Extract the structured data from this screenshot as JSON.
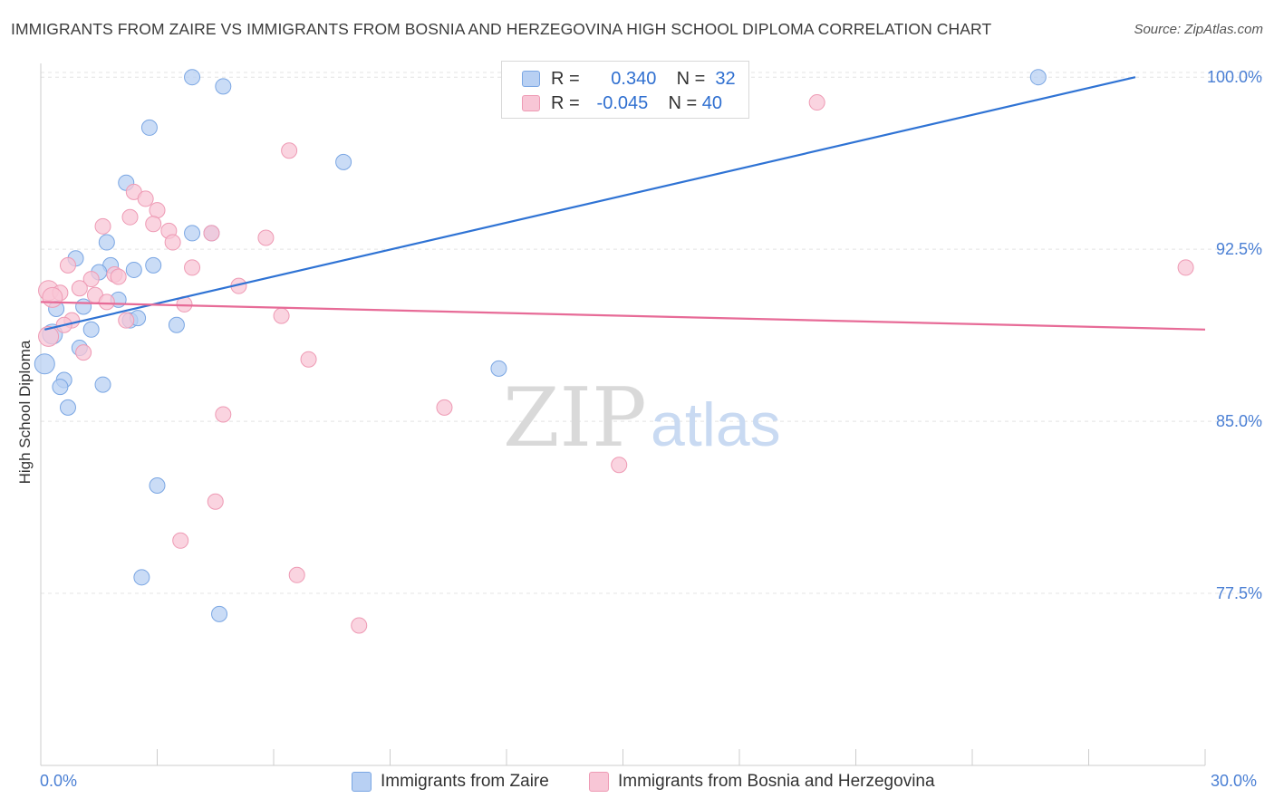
{
  "title": "IMMIGRANTS FROM ZAIRE VS IMMIGRANTS FROM BOSNIA AND HERZEGOVINA HIGH SCHOOL DIPLOMA CORRELATION CHART",
  "source": "Source: ZipAtlas.com",
  "watermark": {
    "zip": "ZIP",
    "atlas": "atlas"
  },
  "legend": {
    "r_label": "R =",
    "n_label": "N =",
    "series1": {
      "r": "0.340",
      "n": "32"
    },
    "series2": {
      "r": "-0.045",
      "n": "40"
    }
  },
  "x_axis": {
    "min_label": "0.0%",
    "max_label": "30.0%"
  },
  "colors": {
    "blue_fill": "#b8d0f3",
    "blue_stroke": "#7aa6e3",
    "blue_line": "#2f73d4",
    "pink_fill": "#f8c6d6",
    "pink_stroke": "#ee9ab4",
    "pink_line": "#e76b97",
    "axis_text": "#4a7fd4"
  },
  "chart_data": {
    "type": "scatter",
    "title": "IMMIGRANTS FROM ZAIRE VS IMMIGRANTS FROM BOSNIA AND HERZEGOVINA HIGH SCHOOL DIPLOMA CORRELATION CHART",
    "xlabel": "",
    "ylabel": "High School Diploma",
    "xlim": [
      0,
      30
    ],
    "ylim": [
      70.0,
      100.6
    ],
    "y_ticks": [
      {
        "value": 77.5,
        "label": "77.5%"
      },
      {
        "value": 85.0,
        "label": "85.0%"
      },
      {
        "value": 92.5,
        "label": "92.5%"
      },
      {
        "value": 100.0,
        "label": "100.0%"
      }
    ],
    "grid": true,
    "series": [
      {
        "name": "Immigrants from Zaire",
        "color": "blue",
        "trend": {
          "x": [
            0.1,
            28.2
          ],
          "y": [
            89.0,
            100.0
          ]
        },
        "points": [
          {
            "x": 3.9,
            "y": 100.0
          },
          {
            "x": 4.7,
            "y": 99.6
          },
          {
            "x": 2.8,
            "y": 97.8
          },
          {
            "x": 7.8,
            "y": 96.3
          },
          {
            "x": 2.2,
            "y": 95.4
          },
          {
            "x": 4.4,
            "y": 93.2
          },
          {
            "x": 1.7,
            "y": 92.8
          },
          {
            "x": 0.9,
            "y": 92.1
          },
          {
            "x": 1.8,
            "y": 91.8
          },
          {
            "x": 1.5,
            "y": 91.5
          },
          {
            "x": 2.4,
            "y": 91.6
          },
          {
            "x": 2.9,
            "y": 91.8
          },
          {
            "x": 0.4,
            "y": 89.9
          },
          {
            "x": 1.1,
            "y": 90.0
          },
          {
            "x": 2.0,
            "y": 90.3
          },
          {
            "x": 2.3,
            "y": 89.4
          },
          {
            "x": 2.5,
            "y": 89.5
          },
          {
            "x": 3.5,
            "y": 89.2
          },
          {
            "x": 0.3,
            "y": 88.8
          },
          {
            "x": 1.3,
            "y": 89.0
          },
          {
            "x": 1.0,
            "y": 88.2
          },
          {
            "x": 0.1,
            "y": 87.5
          },
          {
            "x": 0.6,
            "y": 86.8
          },
          {
            "x": 0.5,
            "y": 86.5
          },
          {
            "x": 1.6,
            "y": 86.6
          },
          {
            "x": 0.7,
            "y": 85.6
          },
          {
            "x": 11.8,
            "y": 87.3
          },
          {
            "x": 3.0,
            "y": 82.2
          },
          {
            "x": 2.6,
            "y": 78.2
          },
          {
            "x": 4.6,
            "y": 76.6
          },
          {
            "x": 25.7,
            "y": 100.0
          },
          {
            "x": 3.9,
            "y": 93.2
          }
        ]
      },
      {
        "name": "Immigrants from Bosnia and Herzegovina",
        "color": "pink",
        "trend": {
          "x": [
            0.0,
            30.0
          ],
          "y": [
            90.2,
            89.0
          ]
        },
        "points": [
          {
            "x": 20.0,
            "y": 98.9
          },
          {
            "x": 6.4,
            "y": 96.8
          },
          {
            "x": 2.4,
            "y": 95.0
          },
          {
            "x": 2.7,
            "y": 94.7
          },
          {
            "x": 3.0,
            "y": 94.2
          },
          {
            "x": 2.3,
            "y": 93.9
          },
          {
            "x": 1.6,
            "y": 93.5
          },
          {
            "x": 2.9,
            "y": 93.6
          },
          {
            "x": 3.3,
            "y": 93.3
          },
          {
            "x": 3.4,
            "y": 92.8
          },
          {
            "x": 4.4,
            "y": 93.2
          },
          {
            "x": 5.8,
            "y": 93.0
          },
          {
            "x": 0.7,
            "y": 91.8
          },
          {
            "x": 3.9,
            "y": 91.7
          },
          {
            "x": 1.3,
            "y": 91.2
          },
          {
            "x": 1.9,
            "y": 91.4
          },
          {
            "x": 2.0,
            "y": 91.3
          },
          {
            "x": 5.1,
            "y": 90.9
          },
          {
            "x": 0.2,
            "y": 90.7
          },
          {
            "x": 0.5,
            "y": 90.6
          },
          {
            "x": 1.0,
            "y": 90.8
          },
          {
            "x": 1.4,
            "y": 90.5
          },
          {
            "x": 1.7,
            "y": 90.2
          },
          {
            "x": 3.7,
            "y": 90.1
          },
          {
            "x": 6.2,
            "y": 89.6
          },
          {
            "x": 0.8,
            "y": 89.4
          },
          {
            "x": 2.2,
            "y": 89.4
          },
          {
            "x": 0.2,
            "y": 88.7
          },
          {
            "x": 1.1,
            "y": 88.0
          },
          {
            "x": 6.9,
            "y": 87.7
          },
          {
            "x": 10.4,
            "y": 85.6
          },
          {
            "x": 4.7,
            "y": 85.3
          },
          {
            "x": 14.9,
            "y": 83.1
          },
          {
            "x": 4.5,
            "y": 81.5
          },
          {
            "x": 3.6,
            "y": 79.8
          },
          {
            "x": 6.6,
            "y": 78.3
          },
          {
            "x": 8.2,
            "y": 76.1
          },
          {
            "x": 29.5,
            "y": 91.7
          },
          {
            "x": 0.3,
            "y": 90.4
          },
          {
            "x": 0.6,
            "y": 89.2
          }
        ]
      }
    ]
  }
}
